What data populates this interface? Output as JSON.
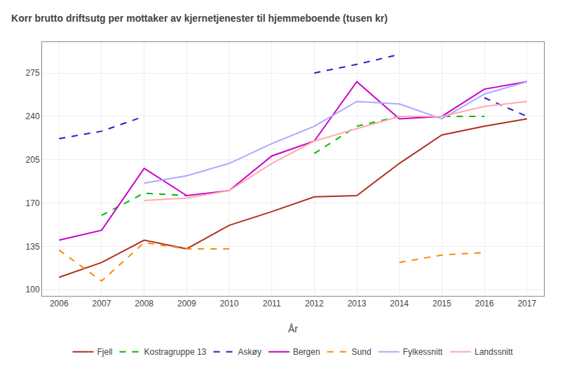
{
  "chart_data": {
    "type": "line",
    "title": "Korr brutto driftsutg per mottaker av kjernetjenester til hjemmeboende (tusen kr)",
    "xlabel": "År",
    "x": [
      2006,
      2007,
      2008,
      2009,
      2010,
      2011,
      2012,
      2013,
      2014,
      2015,
      2016,
      2017
    ],
    "series": [
      {
        "name": "Fjell",
        "color": "#b03020",
        "line_style": "solid",
        "values": [
          110,
          122,
          140,
          133,
          152,
          163,
          175,
          176,
          202,
          225,
          232,
          238
        ]
      },
      {
        "name": "Kostragruppe 13",
        "color": "#00bb00",
        "line_style": "dashed",
        "values": [
          null,
          160,
          178,
          176,
          null,
          null,
          210,
          232,
          240,
          240,
          240,
          null
        ]
      },
      {
        "name": "Askøy",
        "color": "#2222cc",
        "line_style": "dashed",
        "values": [
          222,
          228,
          240,
          null,
          null,
          null,
          275,
          282,
          290,
          null,
          255,
          240
        ]
      },
      {
        "name": "Bergen",
        "color": "#cc00cc",
        "line_style": "solid",
        "values": [
          140,
          148,
          198,
          176,
          180,
          208,
          220,
          268,
          238,
          240,
          262,
          268
        ]
      },
      {
        "name": "Sund",
        "color": "#ff8800",
        "line_style": "dashed",
        "values": [
          132,
          107,
          138,
          133,
          133,
          null,
          null,
          null,
          122,
          128,
          130,
          null
        ]
      },
      {
        "name": "Fylkessnitt",
        "color": "#aaaaff",
        "line_style": "solid",
        "values": [
          null,
          null,
          186,
          192,
          202,
          218,
          232,
          252,
          250,
          238,
          258,
          268
        ]
      },
      {
        "name": "Landssnitt",
        "color": "#ffaaaa",
        "line_style": "solid",
        "values": [
          null,
          null,
          172,
          174,
          180,
          202,
          220,
          230,
          240,
          240,
          248,
          252
        ]
      }
    ],
    "xlim": [
      2005.6,
      2017.4
    ],
    "xticks": [
      2006,
      2007,
      2008,
      2009,
      2010,
      2011,
      2012,
      2013,
      2014,
      2015,
      2016,
      2017
    ],
    "ylim": [
      95,
      300
    ],
    "yticks": [
      100,
      135,
      170,
      205,
      240,
      275
    ],
    "grid": true,
    "legend": "bottom"
  }
}
